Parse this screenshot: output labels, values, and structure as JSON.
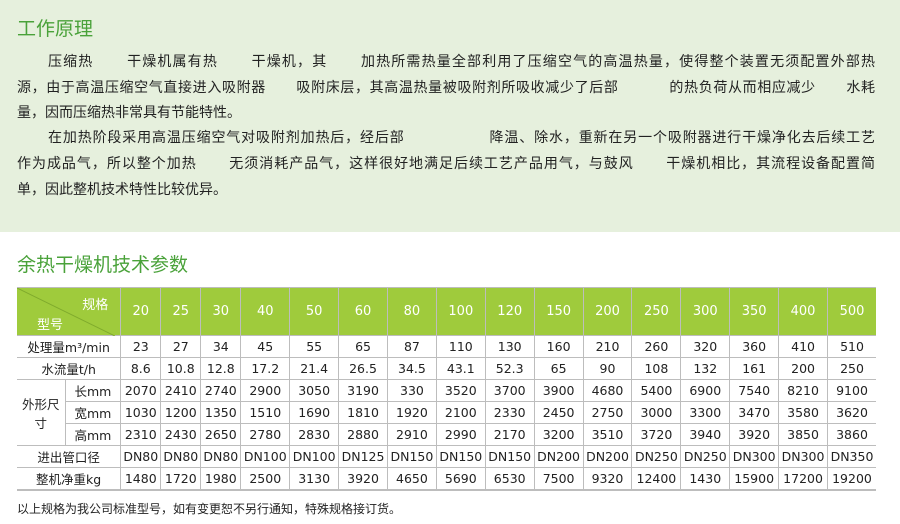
{
  "intro": {
    "title": "工作原理",
    "lines": [
      "压缩热      干燥机属有热      干燥机，其      加热所需热量全部利用了压缩空气的高温热量，使得整个装置无须配置外部热",
      "源，由于高温压缩空气直接进入吸附器      吸附床层，其高温热量被吸附剂所吸收减少了后部          的热负荷从而相应减少      水耗",
      "量，因而压缩热非常具有节能特性。",
      "在加热阶段采用高温压缩空气对吸附剂加热后，经后部                降温、除水，重新在另一个吸附器进行干燥净化去后续工艺",
      "作为成品气，所以整个加热      无须消耗产品气，这样很好地满足后续工艺产品用气，与鼓风      干燥机相比，其流程设备配置简",
      "单，因此整机技术特性比较优异。"
    ]
  },
  "spec": {
    "title": "余热干燥机技术参数",
    "header_spec": "规格",
    "header_model": "型号",
    "columns": [
      "20",
      "25",
      "30",
      "40",
      "50",
      "60",
      "80",
      "100",
      "120",
      "150",
      "200",
      "250",
      "300",
      "350",
      "400",
      "500"
    ],
    "rows": [
      {
        "label": "处理量m³/min",
        "values": [
          "23",
          "27",
          "34",
          "45",
          "55",
          "65",
          "87",
          "110",
          "130",
          "160",
          "210",
          "260",
          "320",
          "360",
          "410",
          "510"
        ]
      },
      {
        "label": "水流量t/h",
        "values": [
          "8.6",
          "10.8",
          "12.8",
          "17.2",
          "21.4",
          "26.5",
          "34.5",
          "43.1",
          "52.3",
          "65",
          "90",
          "108",
          "132",
          "161",
          "200",
          "250"
        ]
      },
      {
        "group": "外形尺寸",
        "label": "长mm",
        "values": [
          "2070",
          "2410",
          "2740",
          "2900",
          "3050",
          "3190",
          "330",
          "3520",
          "3700",
          "3900",
          "4680",
          "5400",
          "6900",
          "7540",
          "8210",
          "9100"
        ]
      },
      {
        "label": "宽mm",
        "values": [
          "1030",
          "1200",
          "1350",
          "1510",
          "1690",
          "1810",
          "1920",
          "2100",
          "2330",
          "2450",
          "2750",
          "3000",
          "3300",
          "3470",
          "3580",
          "3620"
        ]
      },
      {
        "label": "高mm",
        "values": [
          "2310",
          "2430",
          "2650",
          "2780",
          "2830",
          "2880",
          "2910",
          "2990",
          "2170",
          "3200",
          "3510",
          "3720",
          "3940",
          "3920",
          "3850",
          "3860"
        ]
      },
      {
        "label": "进出管口径",
        "values": [
          "DN80",
          "DN80",
          "DN80",
          "DN100",
          "DN100",
          "DN125",
          "DN150",
          "DN150",
          "DN150",
          "DN200",
          "DN200",
          "DN250",
          "DN250",
          "DN300",
          "DN300",
          "DN350"
        ]
      },
      {
        "label": "整机净重kg",
        "values": [
          "1480",
          "1720",
          "1980",
          "2500",
          "3130",
          "3920",
          "4650",
          "5690",
          "6530",
          "7500",
          "9320",
          "12400",
          "1430",
          "15900",
          "17200",
          "19200"
        ]
      }
    ],
    "note": "以上规格为我公司标准型号，如有变更恕不另行通知，特殊规格接订货。"
  },
  "colors": {
    "accent": "#9fcb3c",
    "title": "#4aa23a",
    "intro_bg": "#e6f0dd"
  }
}
